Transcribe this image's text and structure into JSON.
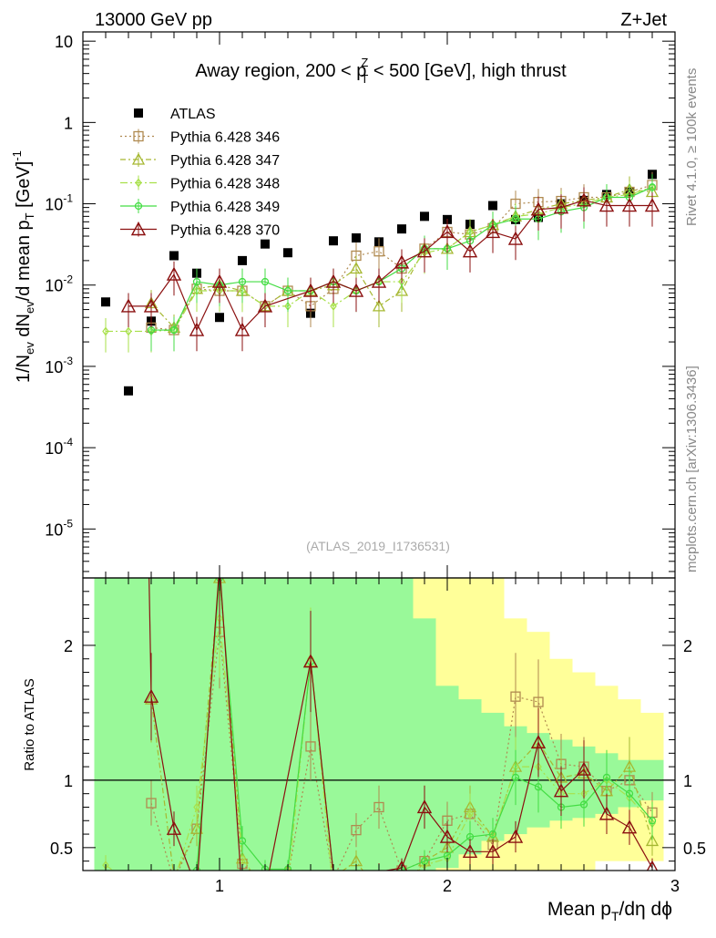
{
  "header": {
    "left": "13000 GeV pp",
    "right": "Z+Jet"
  },
  "title": {
    "prefix": "Away region, 200 < p",
    "sup": "Z",
    "sub": "T",
    "suffix": " < 500 [GeV], high thrust"
  },
  "side_labels": {
    "rivet": "Rivet 4.1.0, ≥ 100k events",
    "mcplots": "mcplots.cern.ch [arXiv:1306.3436]"
  },
  "watermark": "(ATLAS_2019_I1736531)",
  "ylabel": {
    "main": "1/N",
    "ev1": "ev",
    "mid": " dN",
    "ev2": "ev",
    "mid2": "/d mean p",
    "T": "T",
    "unit": " [GeV]",
    "exp": "-1"
  },
  "ratio_ylabel": "Ratio to ATLAS",
  "xlabel": {
    "a": "Mean p",
    "T": "T",
    "b": "/dη dϕ"
  },
  "chart_data": {
    "type": "scatter",
    "x_range": [
      0.4,
      3.0
    ],
    "y_range_log": [
      2.5e-06,
      13
    ],
    "ratio_range": [
      0.33,
      2.5
    ],
    "x_ticks": [
      "1",
      "2",
      "3"
    ],
    "y_ticks": [
      {
        "base": "10",
        "exp": "-5",
        "v": 1e-05
      },
      {
        "base": "10",
        "exp": "-4",
        "v": 0.0001
      },
      {
        "base": "10",
        "exp": "-3",
        "v": 0.001
      },
      {
        "base": "10",
        "exp": "-2",
        "v": 0.01
      },
      {
        "base": "10",
        "exp": "-1",
        "v": 0.1
      },
      {
        "base": "1",
        "exp": "",
        "v": 1
      },
      {
        "base": "10",
        "exp": "",
        "v": 10
      }
    ],
    "ratio_ticks": [
      "0.5",
      "1",
      "2"
    ],
    "ratio_tick_values": [
      0.5,
      1,
      2
    ],
    "x": [
      0.5,
      0.6,
      0.7,
      0.8,
      0.9,
      1.0,
      1.1,
      1.2,
      1.3,
      1.4,
      1.5,
      1.6,
      1.7,
      1.8,
      1.9,
      2.0,
      2.1,
      2.2,
      2.3,
      2.4,
      2.5,
      2.6,
      2.7,
      2.8,
      2.9
    ],
    "band_green": [
      [
        0.33,
        2.5
      ],
      [
        0.33,
        2.5
      ],
      [
        0.33,
        2.5
      ],
      [
        0.33,
        2.5
      ],
      [
        0.33,
        2.5
      ],
      [
        0.33,
        2.5
      ],
      [
        0.33,
        2.5
      ],
      [
        0.33,
        2.5
      ],
      [
        0.33,
        2.5
      ],
      [
        0.33,
        2.5
      ],
      [
        0.33,
        2.5
      ],
      [
        0.33,
        2.5
      ],
      [
        0.33,
        2.5
      ],
      [
        0.33,
        2.5
      ],
      [
        0.33,
        2.2
      ],
      [
        0.35,
        1.7
      ],
      [
        0.45,
        1.6
      ],
      [
        0.55,
        1.5
      ],
      [
        0.6,
        1.4
      ],
      [
        0.65,
        1.35
      ],
      [
        0.7,
        1.3
      ],
      [
        0.72,
        1.25
      ],
      [
        0.75,
        1.2
      ],
      [
        0.8,
        1.15
      ],
      [
        0.85,
        1.15
      ]
    ],
    "band_yellow": [
      [
        0.33,
        2.5
      ],
      [
        0.33,
        2.5
      ],
      [
        0.33,
        2.5
      ],
      [
        0.33,
        2.5
      ],
      [
        0.33,
        2.5
      ],
      [
        0.33,
        2.5
      ],
      [
        0.33,
        2.5
      ],
      [
        0.33,
        2.5
      ],
      [
        0.33,
        2.5
      ],
      [
        0.33,
        2.5
      ],
      [
        0.33,
        2.5
      ],
      [
        0.33,
        2.5
      ],
      [
        0.33,
        2.5
      ],
      [
        0.33,
        2.5
      ],
      [
        0.33,
        2.5
      ],
      [
        0.33,
        2.5
      ],
      [
        0.33,
        2.5
      ],
      [
        0.33,
        2.5
      ],
      [
        0.33,
        2.2
      ],
      [
        0.33,
        2.1
      ],
      [
        0.33,
        1.9
      ],
      [
        0.33,
        1.8
      ],
      [
        0.4,
        1.7
      ],
      [
        0.4,
        1.6
      ],
      [
        0.4,
        1.5
      ]
    ],
    "series": [
      {
        "name": "ATLAS",
        "style": "data",
        "color": "#000000",
        "values": [
          0.0062,
          0.0005,
          0.0036,
          0.023,
          0.014,
          0.004,
          0.02,
          0.032,
          0.025,
          0.0045,
          0.035,
          0.038,
          0.034,
          0.049,
          0.07,
          0.064,
          0.056,
          0.095,
          0.064,
          0.068,
          0.1,
          0.11,
          0.13,
          0.14,
          0.23
        ]
      },
      {
        "name": "Pythia 6.428 346",
        "style": "square",
        "color": "#b08a50",
        "dash": "2,3",
        "values": [
          null,
          null,
          0.003,
          0.0028,
          0.009,
          0.0085,
          0.0085,
          0.0055,
          0.0085,
          0.0055,
          0.009,
          0.023,
          0.026,
          0.016,
          0.028,
          0.045,
          0.042,
          0.05,
          0.1,
          0.105,
          0.108,
          0.12,
          0.12,
          0.14,
          0.17
        ],
        "ratio": [
          null,
          null,
          0.83,
          0.25,
          0.64,
          2.1,
          0.38,
          0.22,
          0.28,
          1.25,
          0.27,
          0.63,
          0.8,
          0.33,
          0.4,
          0.7,
          0.75,
          0.52,
          1.62,
          1.58,
          1.12,
          1.1,
          0.92,
          1.0,
          0.76
        ]
      },
      {
        "name": "Pythia 6.428 347",
        "style": "triangle",
        "color": "#a6b832",
        "dash": "6,3,2,3",
        "values": [
          null,
          null,
          0.006,
          0.003,
          0.009,
          0.01,
          0.0085,
          0.0055,
          0.0085,
          0.0085,
          0.01,
          0.016,
          0.0055,
          0.0085,
          0.028,
          0.028,
          0.045,
          0.055,
          0.07,
          0.085,
          0.1,
          0.11,
          0.12,
          0.15,
          0.14
        ],
        "ratio": [
          null,
          null,
          1.6,
          0.28,
          0.64,
          2.5,
          0.42,
          0.17,
          0.33,
          1.88,
          0.28,
          0.4,
          0.16,
          0.17,
          0.4,
          0.5,
          0.8,
          0.58,
          1.1,
          1.28,
          1.02,
          1.05,
          0.92,
          1.1,
          0.55
        ]
      },
      {
        "name": "Pythia 6.428 348",
        "style": "diamond",
        "color": "#a8e04a",
        "dash": "8,3,2,3",
        "values": [
          0.0027,
          0.0027,
          0.0027,
          0.0028,
          0.0085,
          0.0085,
          0.0085,
          0.0055,
          0.0055,
          0.0085,
          0.0055,
          0.0085,
          0.011,
          0.011,
          0.025,
          0.028,
          0.045,
          0.055,
          0.07,
          0.075,
          0.09,
          0.1,
          0.12,
          0.13,
          0.16
        ],
        "ratio": [
          0.37,
          0.25,
          0.25,
          0.25,
          0.8,
          2.2,
          0.42,
          0.18,
          0.22,
          1.9,
          0.16,
          0.22,
          0.3,
          0.22,
          0.37,
          0.42,
          0.75,
          0.58,
          1.1,
          1.1,
          0.9,
          0.9,
          1.0,
          0.87,
          0.68
        ]
      },
      {
        "name": "Pythia 6.428 349",
        "style": "circle",
        "color": "#44dd44",
        "dash": "",
        "values": [
          null,
          null,
          0.0028,
          0.0028,
          0.011,
          0.01,
          0.011,
          0.011,
          0.0085,
          0.0085,
          0.011,
          0.0085,
          0.011,
          0.016,
          0.028,
          0.028,
          0.035,
          0.055,
          0.065,
          0.065,
          0.08,
          0.09,
          0.12,
          0.12,
          0.16
        ],
        "ratio": [
          null,
          null,
          0.25,
          0.25,
          0.33,
          2.5,
          0.55,
          0.34,
          0.34,
          1.88,
          0.31,
          0.22,
          0.32,
          0.33,
          0.4,
          0.44,
          0.58,
          0.6,
          1.02,
          0.95,
          0.8,
          0.82,
          1.02,
          0.9,
          0.7
        ]
      },
      {
        "name": "Pythia 6.428 370",
        "style": "triangle-open",
        "color": "#8b1010",
        "dash": "",
        "values": [
          null,
          0.0055,
          0.0055,
          0.0135,
          0.0028,
          0.011,
          0.0028,
          0.0055,
          null,
          0.0085,
          0.011,
          0.0085,
          0.011,
          0.019,
          0.026,
          0.045,
          0.026,
          0.045,
          0.037,
          0.085,
          0.09,
          0.11,
          0.095,
          0.095,
          0.095
        ],
        "ratio": [
          null,
          11.0,
          1.62,
          0.64,
          0.2,
          2.6,
          0.14,
          0.17,
          null,
          1.88,
          0.31,
          0.22,
          0.32,
          0.35,
          0.8,
          0.58,
          0.47,
          0.47,
          0.58,
          1.28,
          0.92,
          1.08,
          0.75,
          0.65,
          0.35
        ]
      }
    ]
  }
}
